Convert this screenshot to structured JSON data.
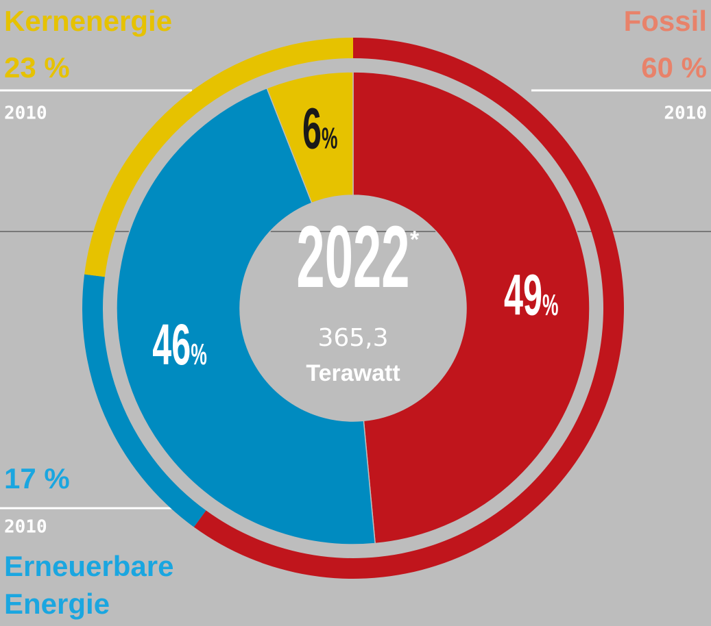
{
  "chart_data": {
    "type": "donut",
    "title": "2022",
    "note": "*",
    "total": "365,3",
    "unit": "Terawatt",
    "categories": [
      "Fossil",
      "Erneuerbare Energie",
      "Kernenergie"
    ],
    "colors": [
      "#c0151c",
      "#008bc0",
      "#e6c200"
    ],
    "label_colors": [
      "#e8826a",
      "#1aa6e0",
      "#e6c200"
    ],
    "value_label_colors": [
      "#ffffff",
      "#ffffff",
      "#1a1a1a"
    ],
    "series": [
      {
        "name": "2022",
        "values": [
          49,
          46,
          6
        ],
        "value_labels": [
          "49%",
          "46%",
          "6%"
        ]
      },
      {
        "name": "2010",
        "values": [
          60,
          17,
          23
        ],
        "value_labels": [
          "60 %",
          "17 %",
          "23 %"
        ]
      }
    ]
  }
}
